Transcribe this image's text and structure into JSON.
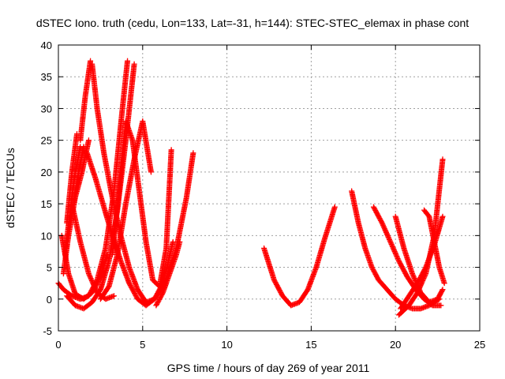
{
  "chart_data": {
    "type": "scatter",
    "title": "dSTEC Iono. truth (cedu, Lon=133, Lat=-31, h=144): STEC-STEC_elemax in phase cont",
    "xlabel": "GPS time / hours of day 269 of year 2011",
    "ylabel": "dSTEC  / TECUs",
    "xlim": [
      0,
      25
    ],
    "ylim": [
      -5,
      40
    ],
    "x_ticks": [
      0,
      5,
      10,
      15,
      20,
      25
    ],
    "y_ticks": [
      -5,
      0,
      5,
      10,
      15,
      20,
      25,
      30,
      35,
      40
    ],
    "grid": true,
    "marker": "+",
    "color": "#ff0000",
    "series": [
      {
        "x": [
          0.0,
          0.3,
          0.8,
          1.3,
          1.8,
          2.3,
          2.8,
          3.3,
          3.8,
          4.1
        ],
        "y": [
          2.5,
          1.5,
          0.5,
          0.0,
          0.5,
          3.0,
          8.0,
          17.0,
          30.0,
          37.5
        ]
      },
      {
        "x": [
          0.5,
          1.0,
          1.5,
          2.0,
          2.5,
          3.0,
          3.5,
          4.0,
          4.5
        ],
        "y": [
          0.5,
          -1.0,
          -1.5,
          -0.5,
          1.5,
          6.0,
          14.0,
          25.0,
          37.0
        ]
      },
      {
        "x": [
          0.2,
          0.6,
          1.0,
          1.5,
          2.0,
          2.5,
          2.9
        ],
        "y": [
          10.0,
          4.0,
          0.8,
          0.0,
          1.0,
          3.5,
          7.0
        ]
      },
      {
        "x": [
          0.3,
          0.6,
          1.0,
          1.4,
          1.8
        ],
        "y": [
          4.0,
          10.0,
          16.0,
          20.0,
          25.0
        ]
      },
      {
        "x": [
          0.4,
          0.7,
          1.0,
          1.3
        ],
        "y": [
          7.0,
          14.0,
          20.0,
          24.0
        ]
      },
      {
        "x": [
          0.5,
          0.8,
          1.1
        ],
        "y": [
          12.0,
          20.0,
          26.0
        ]
      },
      {
        "x": [
          1.3,
          1.6,
          1.9
        ],
        "y": [
          25.0,
          32.0,
          37.5
        ]
      },
      {
        "x": [
          0.9,
          1.2,
          1.5
        ],
        "y": [
          15.0,
          20.0,
          24.0
        ]
      },
      {
        "x": [
          2.0,
          2.3,
          2.7,
          3.2,
          3.7,
          4.2,
          4.7,
          5.2,
          5.7,
          6.2,
          6.8
        ],
        "y": [
          37.0,
          30.0,
          23.0,
          16.0,
          10.0,
          5.0,
          1.5,
          -0.5,
          0.0,
          2.5,
          9.0
        ]
      },
      {
        "x": [
          1.7,
          2.2,
          2.7,
          3.2,
          3.7,
          4.2,
          4.7,
          5.2,
          5.7,
          6.3,
          7.0,
          7.6,
          8.0
        ],
        "y": [
          23.0,
          19.0,
          14.5,
          10.0,
          6.0,
          2.5,
          0.0,
          -1.0,
          0.0,
          2.5,
          8.0,
          16.0,
          23.0
        ]
      },
      {
        "x": [
          0.8,
          1.3,
          1.8,
          2.3,
          2.8,
          3.3
        ],
        "y": [
          15.0,
          9.0,
          4.0,
          1.0,
          0.0,
          0.5
        ]
      },
      {
        "x": [
          3.2,
          3.6,
          4.0,
          4.4,
          4.8,
          5.2,
          5.6,
          6.0,
          6.4,
          6.7
        ],
        "y": [
          7.0,
          17.0,
          28.0,
          25.0,
          17.0,
          9.0,
          3.0,
          2.0,
          8.0,
          23.5
        ]
      },
      {
        "x": [
          2.5,
          3.0,
          3.5,
          4.0,
          4.5,
          5.0,
          5.5
        ],
        "y": [
          0.0,
          2.0,
          7.0,
          15.0,
          22.0,
          28.0,
          20.0
        ]
      },
      {
        "x": [
          5.8,
          6.2,
          6.6,
          7.0,
          7.2
        ],
        "y": [
          -1.0,
          1.0,
          4.0,
          7.0,
          9.0
        ]
      },
      {
        "x": [
          12.2,
          12.8,
          13.3,
          13.8,
          14.3,
          14.8,
          15.3,
          15.8,
          16.4
        ],
        "y": [
          8.0,
          3.0,
          0.5,
          -1.0,
          -0.5,
          1.5,
          5.0,
          9.5,
          14.5
        ]
      },
      {
        "x": [
          17.4,
          17.8,
          18.2,
          18.6,
          19.0,
          19.5,
          20.0,
          20.5,
          21.0,
          21.5,
          22.0,
          22.6
        ],
        "y": [
          17.0,
          12.0,
          8.0,
          5.0,
          3.0,
          1.5,
          0.0,
          -1.0,
          -1.5,
          -1.5,
          -1.0,
          0.0
        ]
      },
      {
        "x": [
          18.7,
          19.2,
          19.7,
          20.2,
          20.7,
          21.2,
          21.7,
          22.2,
          22.7
        ],
        "y": [
          14.5,
          12.0,
          9.0,
          6.0,
          3.5,
          1.5,
          0.0,
          -1.0,
          -1.0
        ]
      },
      {
        "x": [
          20.0,
          20.5,
          21.0,
          21.5,
          22.0,
          22.5,
          22.8
        ],
        "y": [
          13.0,
          8.0,
          4.0,
          1.0,
          -0.5,
          0.0,
          1.5
        ]
      },
      {
        "x": [
          20.2,
          20.8,
          21.3,
          21.8,
          22.3,
          22.8
        ],
        "y": [
          -2.5,
          -1.0,
          1.0,
          4.0,
          10.0,
          22.0
        ]
      },
      {
        "x": [
          20.3,
          20.8,
          21.3,
          21.8,
          22.3,
          22.8
        ],
        "y": [
          -1.5,
          0.5,
          2.5,
          5.0,
          8.5,
          13.0
        ]
      },
      {
        "x": [
          21.7,
          22.0,
          22.3,
          22.6,
          22.9
        ],
        "y": [
          14.0,
          13.0,
          9.0,
          5.0,
          2.5
        ]
      }
    ]
  }
}
